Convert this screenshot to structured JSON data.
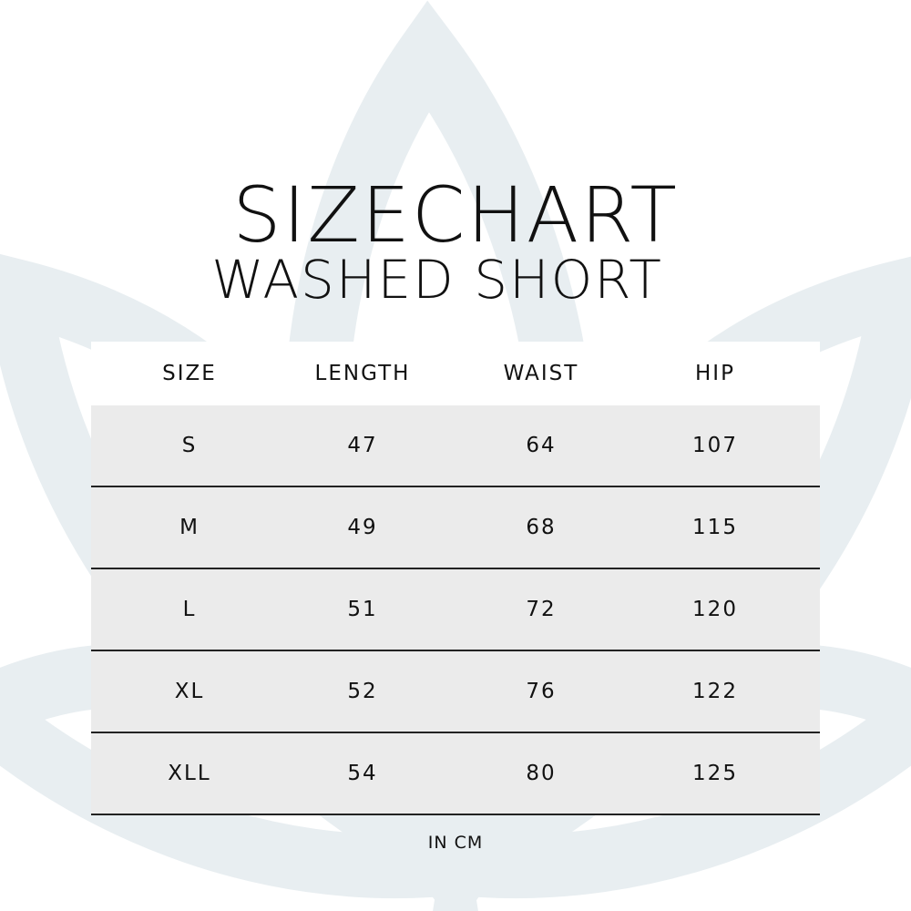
{
  "title": "SIZECHART",
  "subtitle": "WASHED SHORT",
  "table": {
    "headers": [
      "SIZE",
      "LENGTH",
      "WAIST",
      "HIP"
    ],
    "rows": [
      [
        "S",
        "47",
        "64",
        "107"
      ],
      [
        "M",
        "49",
        "68",
        "115"
      ],
      [
        "L",
        "51",
        "72",
        "120"
      ],
      [
        "XL",
        "52",
        "76",
        "122"
      ],
      [
        "XLL",
        "54",
        "80",
        "125"
      ]
    ]
  },
  "unit_note": "IN CM",
  "colors": {
    "watermark": "#e8eef1",
    "row_fill": "#ebebeb",
    "divider": "#222222"
  },
  "watermark_icon": "lotus-icon"
}
